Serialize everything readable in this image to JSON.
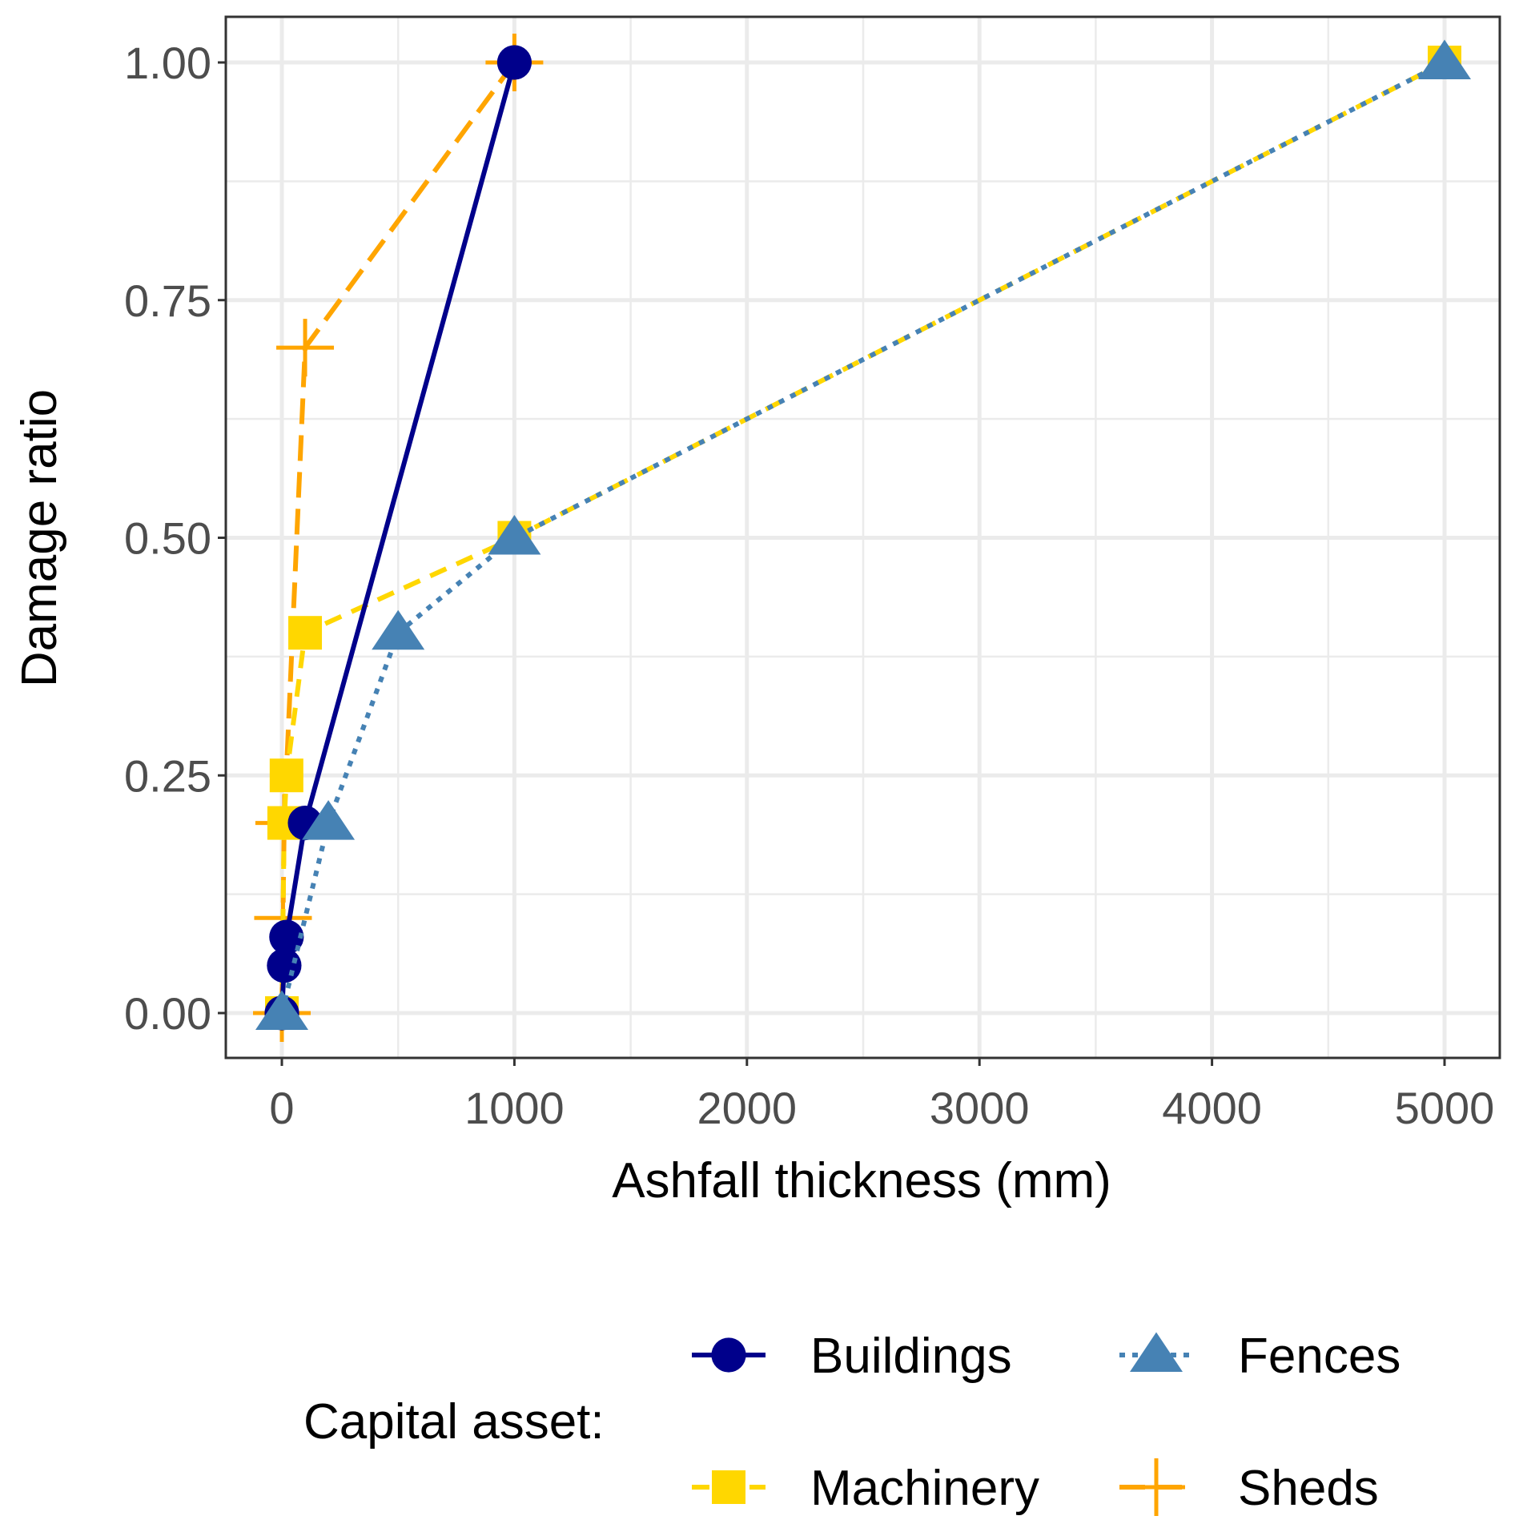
{
  "chart_data": {
    "type": "line",
    "title": "",
    "xlabel": "Ashfall thickness (mm)",
    "ylabel": "Damage ratio",
    "xlim": [
      -240,
      5240
    ],
    "ylim": [
      -0.048,
      1.048
    ],
    "xticks": [
      0,
      1000,
      2000,
      3000,
      4000,
      5000
    ],
    "xtick_labels": [
      "0",
      "1000",
      "2000",
      "3000",
      "4000",
      "5000"
    ],
    "yticks": [
      0,
      0.25,
      0.5,
      0.75,
      1
    ],
    "ytick_labels": [
      "0.00",
      "0.25",
      "0.50",
      "0.75",
      "1.00"
    ],
    "grid": true,
    "legend": {
      "title": "Capital asset:",
      "placement": "bottom"
    },
    "series": [
      {
        "name": "Buildings",
        "color": "#00008B",
        "marker": "circle",
        "linestyle": "solid",
        "x": [
          0,
          10,
          20,
          100,
          1000
        ],
        "y": [
          0,
          0.05,
          0.08,
          0.2,
          1
        ]
      },
      {
        "name": "Fences",
        "color": "#4682B4",
        "marker": "triangle",
        "linestyle": "dotted",
        "x": [
          0,
          200,
          500,
          1000,
          5000
        ],
        "y": [
          0,
          0.2,
          0.4,
          0.5,
          1
        ]
      },
      {
        "name": "Machinery",
        "color": "#FFD700",
        "marker": "square",
        "linestyle": "dashed",
        "x": [
          0,
          10,
          20,
          100,
          1000,
          5000
        ],
        "y": [
          0,
          0.2,
          0.25,
          0.4,
          0.5,
          1
        ]
      },
      {
        "name": "Sheds",
        "color": "#FFA500",
        "marker": "plus",
        "linestyle": "longdash",
        "x": [
          0,
          5,
          10,
          100,
          1000
        ],
        "y": [
          0,
          0.1,
          0.2,
          0.7,
          1
        ]
      }
    ]
  }
}
